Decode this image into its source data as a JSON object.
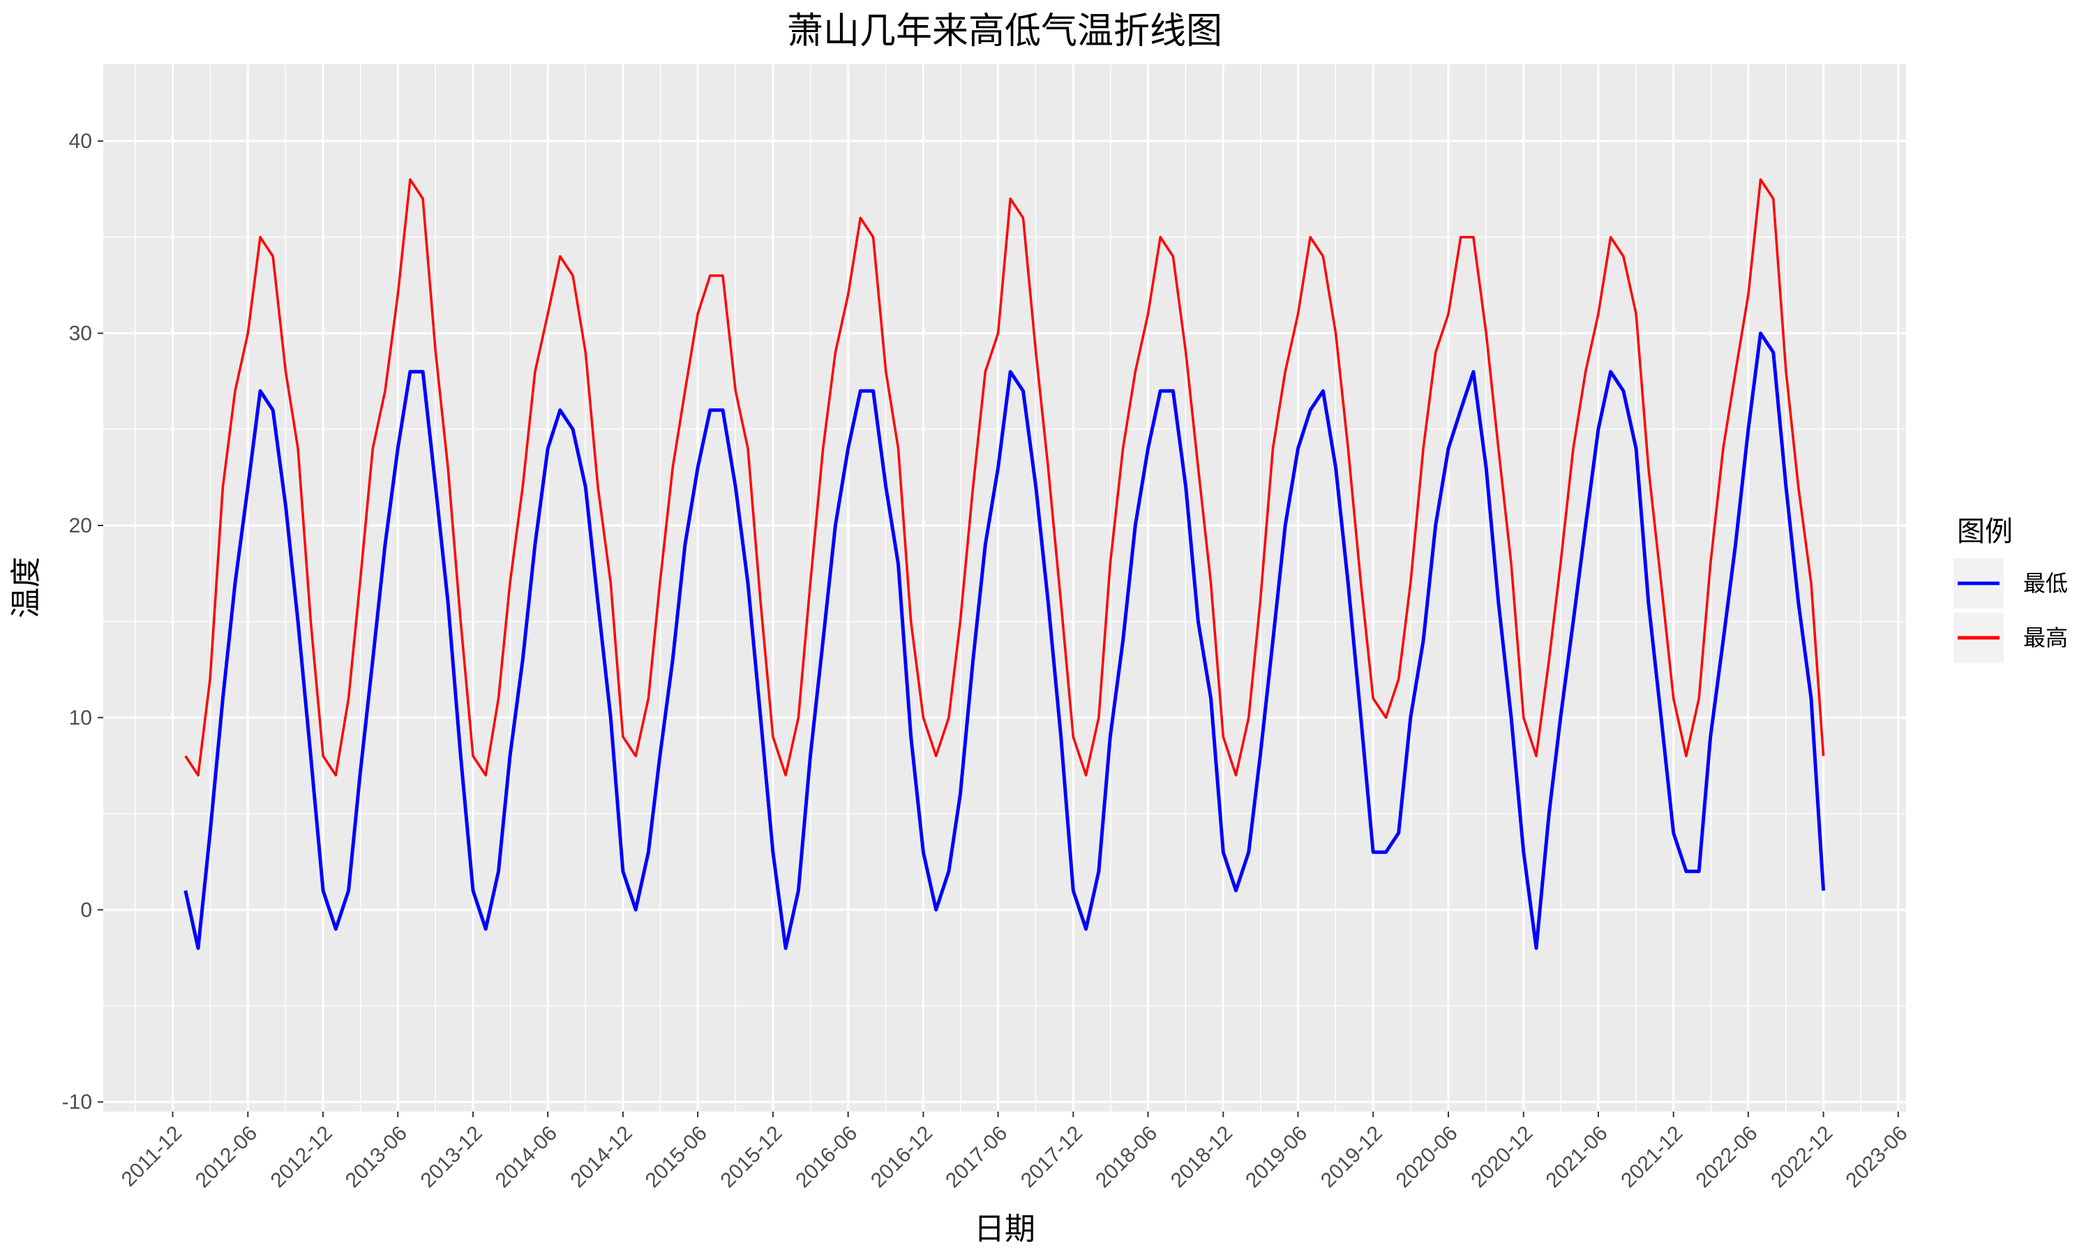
{
  "chart_data": {
    "type": "line",
    "title": "萧山几年来高低气温折线图",
    "xlabel": "日期",
    "ylabel": "温度",
    "xlim": [
      "2011-06-15",
      "2023-06-20"
    ],
    "ylim": [
      -10.5,
      44
    ],
    "x_ticks": [
      "2011-12",
      "2012-06",
      "2012-12",
      "2013-06",
      "2013-12",
      "2014-06",
      "2014-12",
      "2015-06",
      "2015-12",
      "2016-06",
      "2016-12",
      "2017-06",
      "2017-12",
      "2018-06",
      "2018-12",
      "2019-06",
      "2019-12",
      "2020-06",
      "2020-12",
      "2021-06",
      "2021-12",
      "2022-06",
      "2022-12",
      "2023-06"
    ],
    "y_ticks": [
      -10,
      0,
      10,
      20,
      30,
      40
    ],
    "grid": true,
    "legend": {
      "title": "图例",
      "placement": "right"
    },
    "series": [
      {
        "name": "最低",
        "color": "#0000ff",
        "x": [
          "2012-01-01",
          "2012-02-01",
          "2012-03-01",
          "2012-04-01",
          "2012-05-01",
          "2012-06-01",
          "2012-07-01",
          "2012-08-01",
          "2012-09-01",
          "2012-10-01",
          "2012-11-01",
          "2012-12-01",
          "2013-01-01",
          "2013-02-01",
          "2013-03-01",
          "2013-04-01",
          "2013-05-01",
          "2013-06-01",
          "2013-07-01",
          "2013-08-01",
          "2013-09-01",
          "2013-10-01",
          "2013-11-01",
          "2013-12-01",
          "2014-01-01",
          "2014-02-01",
          "2014-03-01",
          "2014-04-01",
          "2014-05-01",
          "2014-06-01",
          "2014-07-01",
          "2014-08-01",
          "2014-09-01",
          "2014-10-01",
          "2014-11-01",
          "2014-12-01",
          "2015-01-01",
          "2015-02-01",
          "2015-03-01",
          "2015-04-01",
          "2015-05-01",
          "2015-06-01",
          "2015-07-01",
          "2015-08-01",
          "2015-09-01",
          "2015-10-01",
          "2015-11-01",
          "2015-12-01",
          "2016-01-01",
          "2016-02-01",
          "2016-03-01",
          "2016-04-01",
          "2016-05-01",
          "2016-06-01",
          "2016-07-01",
          "2016-08-01",
          "2016-09-01",
          "2016-10-01",
          "2016-11-01",
          "2016-12-01",
          "2017-01-01",
          "2017-02-01",
          "2017-03-01",
          "2017-04-01",
          "2017-05-01",
          "2017-06-01",
          "2017-07-01",
          "2017-08-01",
          "2017-09-01",
          "2017-10-01",
          "2017-11-01",
          "2017-12-01",
          "2018-01-01",
          "2018-02-01",
          "2018-03-01",
          "2018-04-01",
          "2018-05-01",
          "2018-06-01",
          "2018-07-01",
          "2018-08-01",
          "2018-09-01",
          "2018-10-01",
          "2018-11-01",
          "2018-12-01",
          "2019-01-01",
          "2019-02-01",
          "2019-03-01",
          "2019-04-01",
          "2019-05-01",
          "2019-06-01",
          "2019-07-01",
          "2019-08-01",
          "2019-09-01",
          "2019-10-01",
          "2019-11-01",
          "2019-12-01",
          "2020-01-01",
          "2020-02-01",
          "2020-03-01",
          "2020-04-01",
          "2020-05-01",
          "2020-06-01",
          "2020-07-01",
          "2020-08-01",
          "2020-09-01",
          "2020-10-01",
          "2020-11-01",
          "2020-12-01",
          "2021-01-01",
          "2021-02-01",
          "2021-03-01",
          "2021-04-01",
          "2021-05-01",
          "2021-06-01",
          "2021-07-01",
          "2021-08-01",
          "2021-09-01",
          "2021-10-01",
          "2021-11-01",
          "2021-12-01",
          "2022-01-01",
          "2022-02-01",
          "2022-03-01",
          "2022-04-01",
          "2022-05-01",
          "2022-06-01",
          "2022-07-01",
          "2022-08-01",
          "2022-09-01",
          "2022-10-01",
          "2022-11-01",
          "2022-12-01"
        ],
        "values": [
          1,
          -2,
          4,
          11,
          17,
          22,
          27,
          26,
          21,
          15,
          8,
          1,
          -1,
          1,
          7,
          13,
          19,
          24,
          28,
          28,
          22,
          16,
          8,
          1,
          -1,
          2,
          8,
          13,
          19,
          24,
          26,
          25,
          22,
          16,
          10,
          2,
          0,
          3,
          8,
          13,
          19,
          23,
          26,
          26,
          22,
          17,
          10,
          3,
          -2,
          1,
          8,
          14,
          20,
          24,
          27,
          27,
          22,
          18,
          9,
          3,
          0,
          2,
          6,
          13,
          19,
          23,
          28,
          27,
          22,
          16,
          9,
          1,
          -1,
          2,
          9,
          14,
          20,
          24,
          27,
          27,
          22,
          15,
          11,
          3,
          1,
          3,
          8,
          14,
          20,
          24,
          26,
          27,
          23,
          17,
          10,
          3,
          3,
          4,
          10,
          14,
          20,
          24,
          26,
          28,
          23,
          16,
          10,
          3,
          -2,
          5,
          10,
          15,
          20,
          25,
          28,
          27,
          24,
          16,
          10,
          4,
          2,
          2,
          9,
          14,
          19,
          25,
          30,
          29,
          22,
          16,
          11,
          1
        ]
      },
      {
        "name": "最高",
        "color": "#ff0000",
        "x": [
          "2012-01-01",
          "2012-02-01",
          "2012-03-01",
          "2012-04-01",
          "2012-05-01",
          "2012-06-01",
          "2012-07-01",
          "2012-08-01",
          "2012-09-01",
          "2012-10-01",
          "2012-11-01",
          "2012-12-01",
          "2013-01-01",
          "2013-02-01",
          "2013-03-01",
          "2013-04-01",
          "2013-05-01",
          "2013-06-01",
          "2013-07-01",
          "2013-08-01",
          "2013-09-01",
          "2013-10-01",
          "2013-11-01",
          "2013-12-01",
          "2014-01-01",
          "2014-02-01",
          "2014-03-01",
          "2014-04-01",
          "2014-05-01",
          "2014-06-01",
          "2014-07-01",
          "2014-08-01",
          "2014-09-01",
          "2014-10-01",
          "2014-11-01",
          "2014-12-01",
          "2015-01-01",
          "2015-02-01",
          "2015-03-01",
          "2015-04-01",
          "2015-05-01",
          "2015-06-01",
          "2015-07-01",
          "2015-08-01",
          "2015-09-01",
          "2015-10-01",
          "2015-11-01",
          "2015-12-01",
          "2016-01-01",
          "2016-02-01",
          "2016-03-01",
          "2016-04-01",
          "2016-05-01",
          "2016-06-01",
          "2016-07-01",
          "2016-08-01",
          "2016-09-01",
          "2016-10-01",
          "2016-11-01",
          "2016-12-01",
          "2017-01-01",
          "2017-02-01",
          "2017-03-01",
          "2017-04-01",
          "2017-05-01",
          "2017-06-01",
          "2017-07-01",
          "2017-08-01",
          "2017-09-01",
          "2017-10-01",
          "2017-11-01",
          "2017-12-01",
          "2018-01-01",
          "2018-02-01",
          "2018-03-01",
          "2018-04-01",
          "2018-05-01",
          "2018-06-01",
          "2018-07-01",
          "2018-08-01",
          "2018-09-01",
          "2018-10-01",
          "2018-11-01",
          "2018-12-01",
          "2019-01-01",
          "2019-02-01",
          "2019-03-01",
          "2019-04-01",
          "2019-05-01",
          "2019-06-01",
          "2019-07-01",
          "2019-08-01",
          "2019-09-01",
          "2019-10-01",
          "2019-11-01",
          "2019-12-01",
          "2020-01-01",
          "2020-02-01",
          "2020-03-01",
          "2020-04-01",
          "2020-05-01",
          "2020-06-01",
          "2020-07-01",
          "2020-08-01",
          "2020-09-01",
          "2020-10-01",
          "2020-11-01",
          "2020-12-01",
          "2021-01-01",
          "2021-02-01",
          "2021-03-01",
          "2021-04-01",
          "2021-05-01",
          "2021-06-01",
          "2021-07-01",
          "2021-08-01",
          "2021-09-01",
          "2021-10-01",
          "2021-11-01",
          "2021-12-01",
          "2022-01-01",
          "2022-02-01",
          "2022-03-01",
          "2022-04-01",
          "2022-05-01",
          "2022-06-01",
          "2022-07-01",
          "2022-08-01",
          "2022-09-01",
          "2022-10-01",
          "2022-11-01",
          "2022-12-01"
        ],
        "values": [
          8,
          7,
          12,
          22,
          27,
          30,
          35,
          34,
          28,
          24,
          15,
          8,
          7,
          11,
          17,
          24,
          27,
          32,
          38,
          37,
          29,
          23,
          15,
          8,
          7,
          11,
          17,
          22,
          28,
          31,
          34,
          33,
          29,
          22,
          17,
          9,
          8,
          11,
          17,
          23,
          27,
          31,
          33,
          33,
          27,
          24,
          16,
          9,
          7,
          10,
          17,
          24,
          29,
          32,
          36,
          35,
          28,
          24,
          15,
          10,
          8,
          10,
          15,
          22,
          28,
          30,
          37,
          36,
          29,
          23,
          16,
          9,
          7,
          10,
          18,
          24,
          28,
          31,
          35,
          34,
          29,
          23,
          17,
          9,
          7,
          10,
          16,
          24,
          28,
          31,
          35,
          34,
          30,
          24,
          17,
          11,
          10,
          12,
          17,
          24,
          29,
          31,
          35,
          35,
          30,
          24,
          18,
          10,
          8,
          13,
          18,
          24,
          28,
          31,
          35,
          34,
          31,
          23,
          17,
          11,
          8,
          11,
          18,
          24,
          28,
          32,
          38,
          37,
          28,
          22,
          17,
          8
        ]
      }
    ]
  }
}
